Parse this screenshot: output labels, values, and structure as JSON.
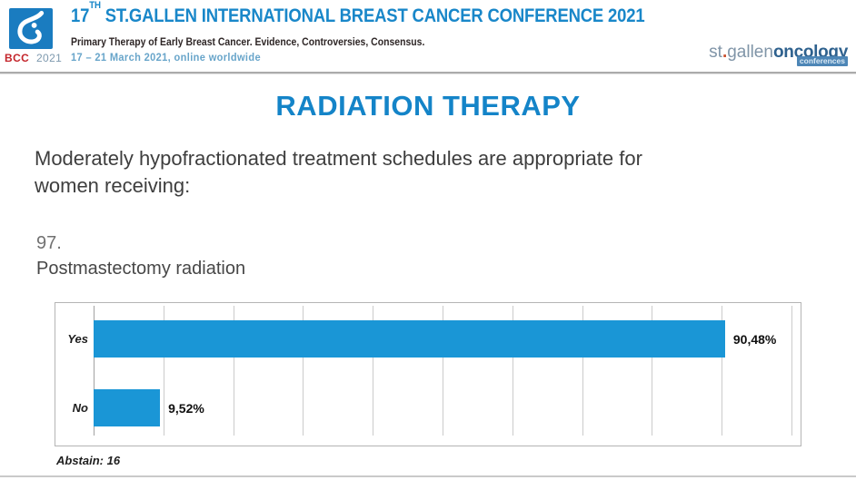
{
  "header": {
    "logo": {
      "bcc": "BCC",
      "year": "2021",
      "square_color": "#1a7cc0"
    },
    "title": {
      "num": "17",
      "sup": "TH",
      "rest": " ST.GALLEN INTERNATIONAL BREAST CANCER CONFERENCE 2021"
    },
    "subtitle": "Primary Therapy of Early Breast Cancer. Evidence, Controversies, Consensus.",
    "date_line": "17 – 21 March 2021, online worldwide",
    "brand": {
      "st": "st",
      "dot": ".",
      "gallen": "gallen",
      "oncology": "oncology",
      "conferences": "conferences"
    }
  },
  "main": {
    "section_title": "RADIATION THERAPY",
    "intro_line1": "Moderately hypofractionated treatment schedules are appropriate for",
    "intro_line2": "women receiving:",
    "question_number": "97.",
    "question_title": "Postmastectomy radiation"
  },
  "chart_data": {
    "type": "bar",
    "orientation": "horizontal",
    "title": "Postmastectomy radiation",
    "categories": [
      "Yes",
      "No"
    ],
    "values": [
      90.48,
      9.52
    ],
    "value_labels": [
      "90,48%",
      "9,52%"
    ],
    "xlim": [
      0,
      100
    ],
    "gridline_step": 10,
    "grid": true,
    "legend_position": "none",
    "footnote": "Abstain: 16",
    "bar_color": "#1a96d6"
  },
  "colors": {
    "accent_blue": "#1484c8",
    "bar_blue": "#1a96d6",
    "date_blue": "#68a5ca",
    "bcc_red": "#c4252b",
    "brand_gray_blue": "#8095a8",
    "brand_dark_blue": "#2e618e"
  }
}
